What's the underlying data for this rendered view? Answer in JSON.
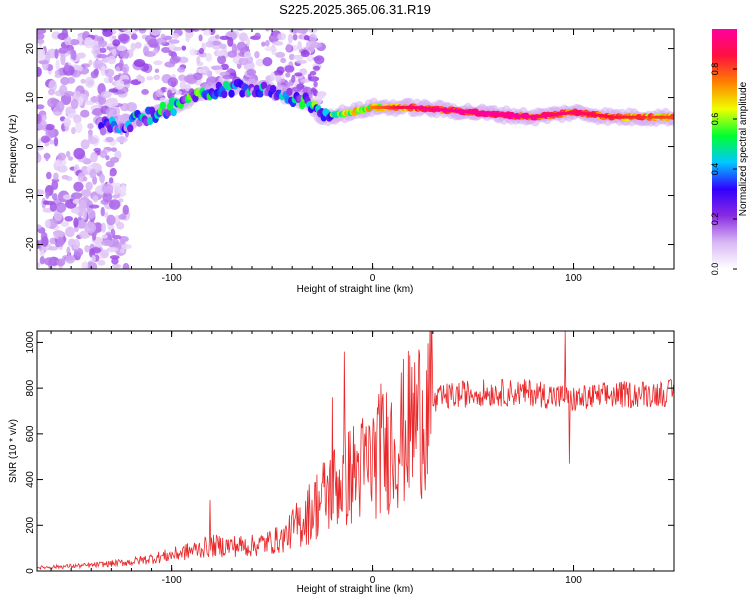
{
  "title": "S225.2025.365.06.31.R19",
  "colors": {
    "snr_line": "#e8282a",
    "frame": "#000000"
  },
  "colorbar": {
    "label": "Normalized spectral amplitude",
    "ticks": [
      "0.0",
      "0.2",
      "0.4",
      "0.6",
      "0.8"
    ],
    "tick_values": [
      0.0,
      0.2,
      0.4,
      0.6,
      0.8
    ],
    "range": [
      0,
      0.96
    ],
    "colormap": [
      "#ffffff",
      "#d9b8f5",
      "#8a2be2",
      "#3000ff",
      "#00c8ff",
      "#00ff30",
      "#f0ff00",
      "#ff8000",
      "#ff1040",
      "#ff00a0"
    ]
  },
  "chart_data": [
    {
      "type": "heatmap",
      "title": "S225.2025.365.06.31.R19",
      "xlabel": "Height of straight line (km)",
      "ylabel": "Frequency (Hz)",
      "xlim": [
        -167,
        150
      ],
      "ylim": [
        -25,
        24
      ],
      "xticks": [
        -100,
        0,
        100
      ],
      "xtick_labels": [
        "-100",
        "0",
        "100"
      ],
      "yticks": [
        -20,
        -10,
        0,
        10,
        20
      ],
      "ytick_labels": [
        "-20",
        "-10",
        "0",
        "10",
        "20"
      ],
      "ridge": {
        "description_points_x": [
          -135,
          -120,
          -100,
          -85,
          -70,
          -55,
          -40,
          -32,
          -25,
          -10,
          0,
          20,
          50,
          80,
          100,
          120,
          150
        ],
        "description_points_y": [
          4,
          5,
          8,
          11,
          12,
          12,
          10,
          9,
          6,
          7,
          8,
          8,
          7,
          6,
          7,
          6,
          6
        ],
        "amplitude": [
          0.3,
          0.4,
          0.45,
          0.5,
          0.4,
          0.35,
          0.35,
          0.5,
          0.55,
          0.6,
          0.65,
          0.8,
          0.9,
          0.85,
          0.8,
          0.75,
          0.7
        ]
      }
    },
    {
      "type": "line",
      "xlabel": "Height of straight line (km)",
      "ylabel": "SNR (10 * v/v)",
      "xlim": [
        -167,
        150
      ],
      "ylim": [
        0,
        1050
      ],
      "xticks": [
        -100,
        0,
        100
      ],
      "xtick_labels": [
        "-100",
        "0",
        "100"
      ],
      "yticks": [
        0,
        200,
        400,
        600,
        800,
        1000
      ],
      "ytick_labels": [
        "0",
        "200",
        "400",
        "600",
        "800",
        "1000"
      ],
      "trend_x": [
        -167,
        -140,
        -120,
        -100,
        -80,
        -60,
        -45,
        -35,
        -25,
        -15,
        -5,
        5,
        15,
        25,
        35,
        50,
        80,
        100,
        120,
        150
      ],
      "trend_y": [
        15,
        25,
        40,
        70,
        110,
        110,
        140,
        220,
        320,
        400,
        450,
        520,
        600,
        700,
        760,
        780,
        780,
        750,
        770,
        780
      ],
      "spikes": [
        {
          "x": -81,
          "y": 310
        },
        {
          "x": -20,
          "y": 760
        },
        {
          "x": -14,
          "y": 960
        },
        {
          "x": 4,
          "y": 820
        },
        {
          "x": 96,
          "y": 1050
        },
        {
          "x": 98,
          "y": 470
        }
      ]
    }
  ]
}
